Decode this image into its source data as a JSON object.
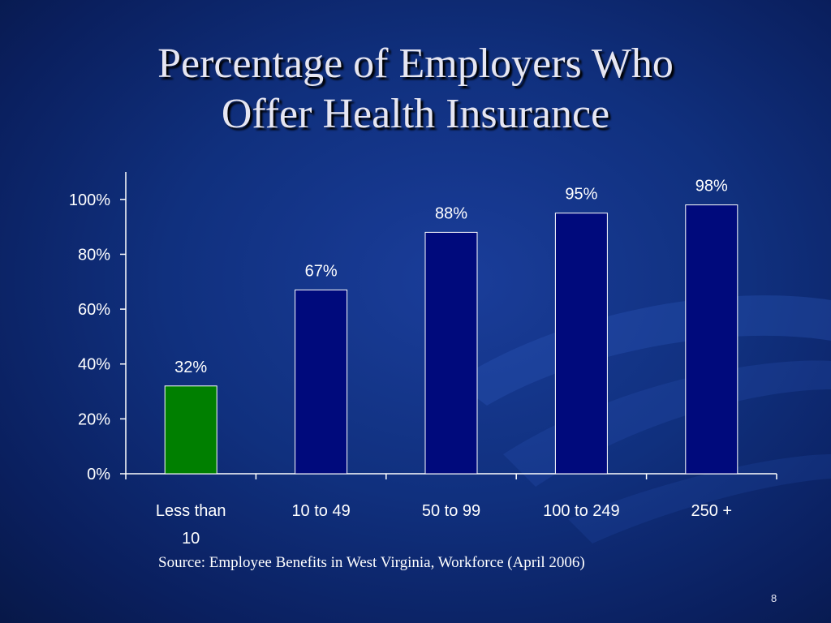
{
  "slide": {
    "title": "Percentage of Employers Who\nOffer Health Insurance",
    "source": "Source: Employee Benefits in West Virginia, Workforce (April 2006)",
    "page_number": "8"
  },
  "colors": {
    "background": "#10307e",
    "bar_default": "#000a7c",
    "bar_highlight": "#007f00",
    "bar_stroke": "#ffffff",
    "axis": "#ffffff"
  },
  "chart_data": {
    "type": "bar",
    "title": "",
    "xlabel": "",
    "ylabel": "",
    "categories": [
      "Less than 10",
      "10 to 49",
      "50 to 99",
      "100 to 249",
      "250 +"
    ],
    "category_lines": [
      [
        "Less than",
        "10"
      ],
      [
        "10 to 49"
      ],
      [
        "50 to 99"
      ],
      [
        "100 to 249"
      ],
      [
        "250 +"
      ]
    ],
    "values": [
      32,
      67,
      88,
      95,
      98
    ],
    "data_labels": [
      "32%",
      "67%",
      "88%",
      "95%",
      "98%"
    ],
    "highlight_index": 0,
    "ylim": [
      0,
      110
    ],
    "yticks": [
      0,
      20,
      40,
      60,
      80,
      100
    ],
    "ytick_labels": [
      "0%",
      "20%",
      "40%",
      "60%",
      "80%",
      "100%"
    ],
    "grid": false,
    "legend": "none"
  }
}
